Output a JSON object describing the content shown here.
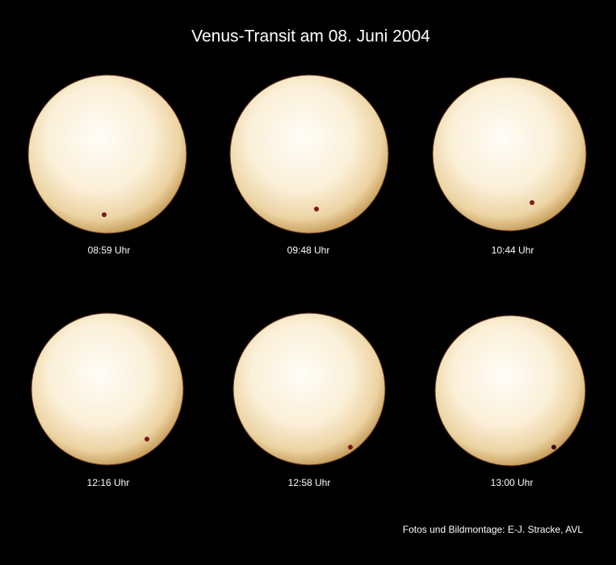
{
  "title": "Venus-Transit am 08. Juni 2004",
  "panels": [
    {
      "time": "08:59 Uhr"
    },
    {
      "time": "09:48 Uhr"
    },
    {
      "time": "10:44 Uhr"
    },
    {
      "time": "12:16 Uhr"
    },
    {
      "time": "12:58 Uhr"
    },
    {
      "time": "13:00 Uhr"
    }
  ],
  "credit": "Fotos und Bildmontage: E-J. Stracke, AVL"
}
